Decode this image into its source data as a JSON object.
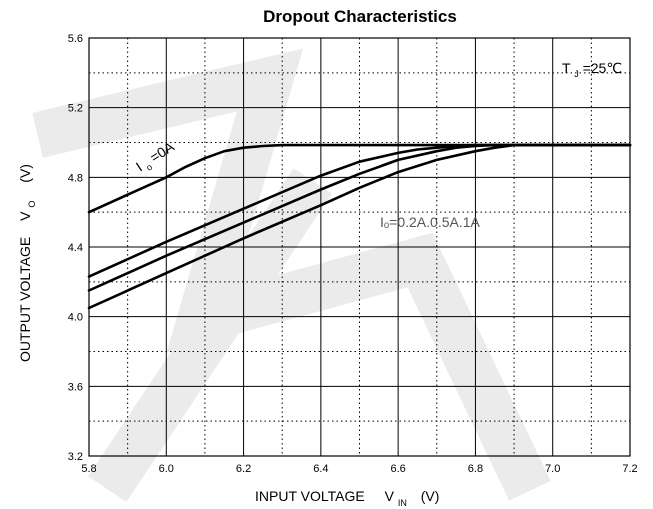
{
  "chart_data": {
    "type": "line",
    "title": "Dropout Characteristics",
    "xlabel": {
      "main": "INPUT VOLTAGE",
      "symbol": "V",
      "subscript": "IN",
      "unit": "(V)"
    },
    "ylabel": {
      "main": "OUTPUT VOLTAGE",
      "symbol": "V",
      "subscript": "O",
      "unit": "(V)"
    },
    "xlim": [
      5.8,
      7.2
    ],
    "ylim": [
      3.2,
      5.6
    ],
    "x_ticks": [
      5.8,
      6.0,
      6.2,
      6.4,
      6.6,
      6.8,
      7.0,
      7.2
    ],
    "x_tick_labels": [
      "5.8",
      "6.0",
      "6.2",
      "6.4",
      "6.6",
      "6.8",
      "7.0",
      "7.2"
    ],
    "y_ticks": [
      3.2,
      3.6,
      4.0,
      4.4,
      4.8,
      5.2,
      5.6
    ],
    "y_tick_labels": [
      "3.2",
      "3.6",
      "4.0",
      "4.4",
      "4.8",
      "5.2",
      "5.6"
    ],
    "grid": {
      "major": "solid",
      "minor": "dotted"
    },
    "series": [
      {
        "label_ref": "io0",
        "x": [
          5.8,
          5.9,
          6.0,
          6.05,
          6.1,
          6.15,
          6.2,
          6.25,
          6.3,
          6.4,
          6.6,
          7.2
        ],
        "y": [
          4.6,
          4.7,
          4.8,
          4.86,
          4.91,
          4.95,
          4.97,
          4.98,
          4.985,
          4.985,
          4.985,
          4.985
        ]
      },
      {
        "label_ref": "io_group",
        "x": [
          5.8,
          6.0,
          6.2,
          6.4,
          6.5,
          6.6,
          6.65,
          6.7,
          6.75,
          6.8,
          7.2
        ],
        "y": [
          4.23,
          4.43,
          4.62,
          4.81,
          4.89,
          4.94,
          4.96,
          4.97,
          4.98,
          4.985,
          4.985
        ]
      },
      {
        "label_ref": "io_group",
        "x": [
          5.8,
          6.0,
          6.2,
          6.4,
          6.5,
          6.6,
          6.7,
          6.75,
          6.8,
          6.85,
          7.2
        ],
        "y": [
          4.15,
          4.35,
          4.54,
          4.73,
          4.82,
          4.9,
          4.95,
          4.97,
          4.98,
          4.985,
          4.985
        ]
      },
      {
        "label_ref": "io_group",
        "x": [
          5.8,
          6.0,
          6.2,
          6.4,
          6.5,
          6.6,
          6.7,
          6.8,
          6.85,
          6.9,
          7.2
        ],
        "y": [
          4.05,
          4.25,
          4.45,
          4.64,
          4.74,
          4.83,
          4.9,
          4.95,
          4.97,
          4.985,
          4.985
        ]
      }
    ],
    "annotations": {
      "tj": {
        "main": "T",
        "sub": "J",
        "rest": "=25℃"
      },
      "io0": {
        "main": "I",
        "sub": "o",
        "rest": "=0A"
      },
      "io_group": {
        "text": "Iₒ=0.2A.0.5A.1A"
      }
    }
  }
}
